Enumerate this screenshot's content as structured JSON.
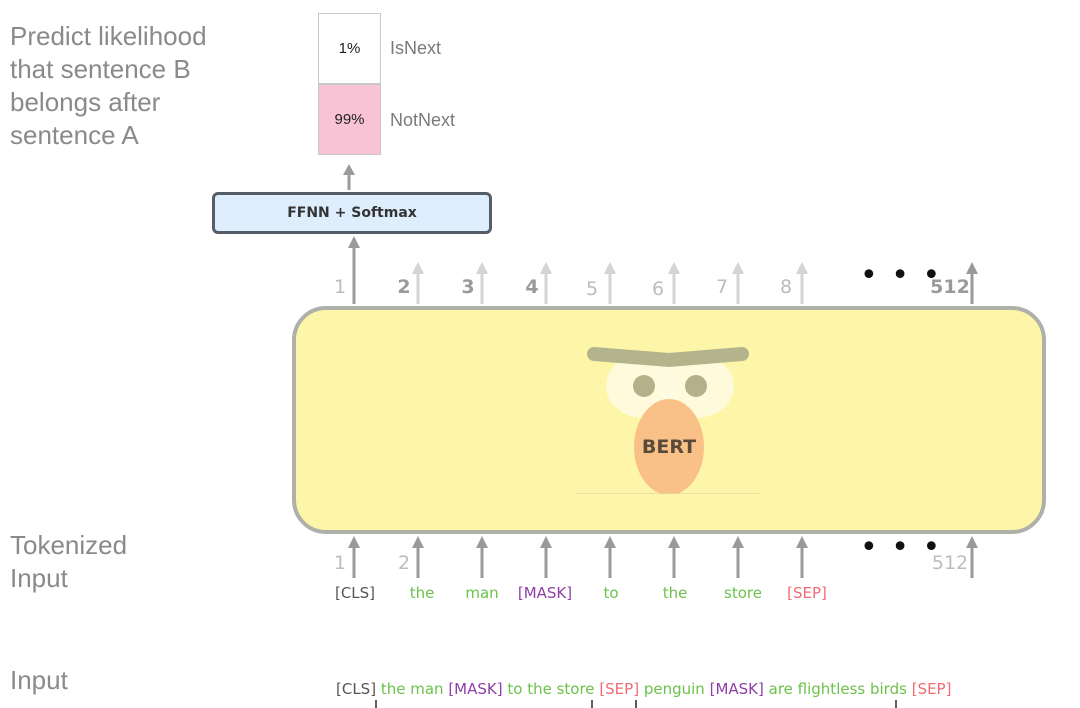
{
  "labels": {
    "predict": [
      "Predict likelihood",
      "that sentence B",
      "belongs after",
      "sentence A"
    ],
    "tokenized": [
      "Tokenized",
      "Input"
    ],
    "input": "Input"
  },
  "output_probs": [
    {
      "percent": "1%",
      "label": "IsNext",
      "color": "#ffffff"
    },
    {
      "percent": "99%",
      "label": "NotNext",
      "color": "#f8c3d4"
    }
  ],
  "classifier": "FFNN + Softmax",
  "model_name": "BERT",
  "output_positions": [
    "1",
    "2",
    "3",
    "4",
    "5",
    "6",
    "7",
    "8",
    "512"
  ],
  "input_positions": [
    "1",
    "2",
    "512"
  ],
  "ellipsis": "• • •",
  "tokens": [
    {
      "text": "[CLS]",
      "kind": "cls"
    },
    {
      "text": "the",
      "kind": "word"
    },
    {
      "text": "man",
      "kind": "word"
    },
    {
      "text": "[MASK]",
      "kind": "mask"
    },
    {
      "text": "to",
      "kind": "word"
    },
    {
      "text": "the",
      "kind": "word"
    },
    {
      "text": "store",
      "kind": "word"
    },
    {
      "text": "[SEP]",
      "kind": "sep"
    }
  ],
  "input_sentence": [
    {
      "text": "[CLS]",
      "kind": "cls"
    },
    {
      "text": "the man",
      "kind": "word"
    },
    {
      "text": "[MASK]",
      "kind": "mask"
    },
    {
      "text": "to the store",
      "kind": "word"
    },
    {
      "text": "[SEP]",
      "kind": "sep"
    },
    {
      "text": "penguin",
      "kind": "word"
    },
    {
      "text": "[MASK]",
      "kind": "mask"
    },
    {
      "text": "are flightless birds",
      "kind": "word"
    },
    {
      "text": "[SEP]",
      "kind": "sep"
    }
  ],
  "colors": {
    "cls": "#555555",
    "word": "#6cc24a",
    "mask": "#8e3fa8",
    "sep": "#f06b73",
    "bert_body": "#fdf6a8",
    "ffnn_fill": "#deeefc",
    "notnext_fill": "#f8c3d4"
  }
}
